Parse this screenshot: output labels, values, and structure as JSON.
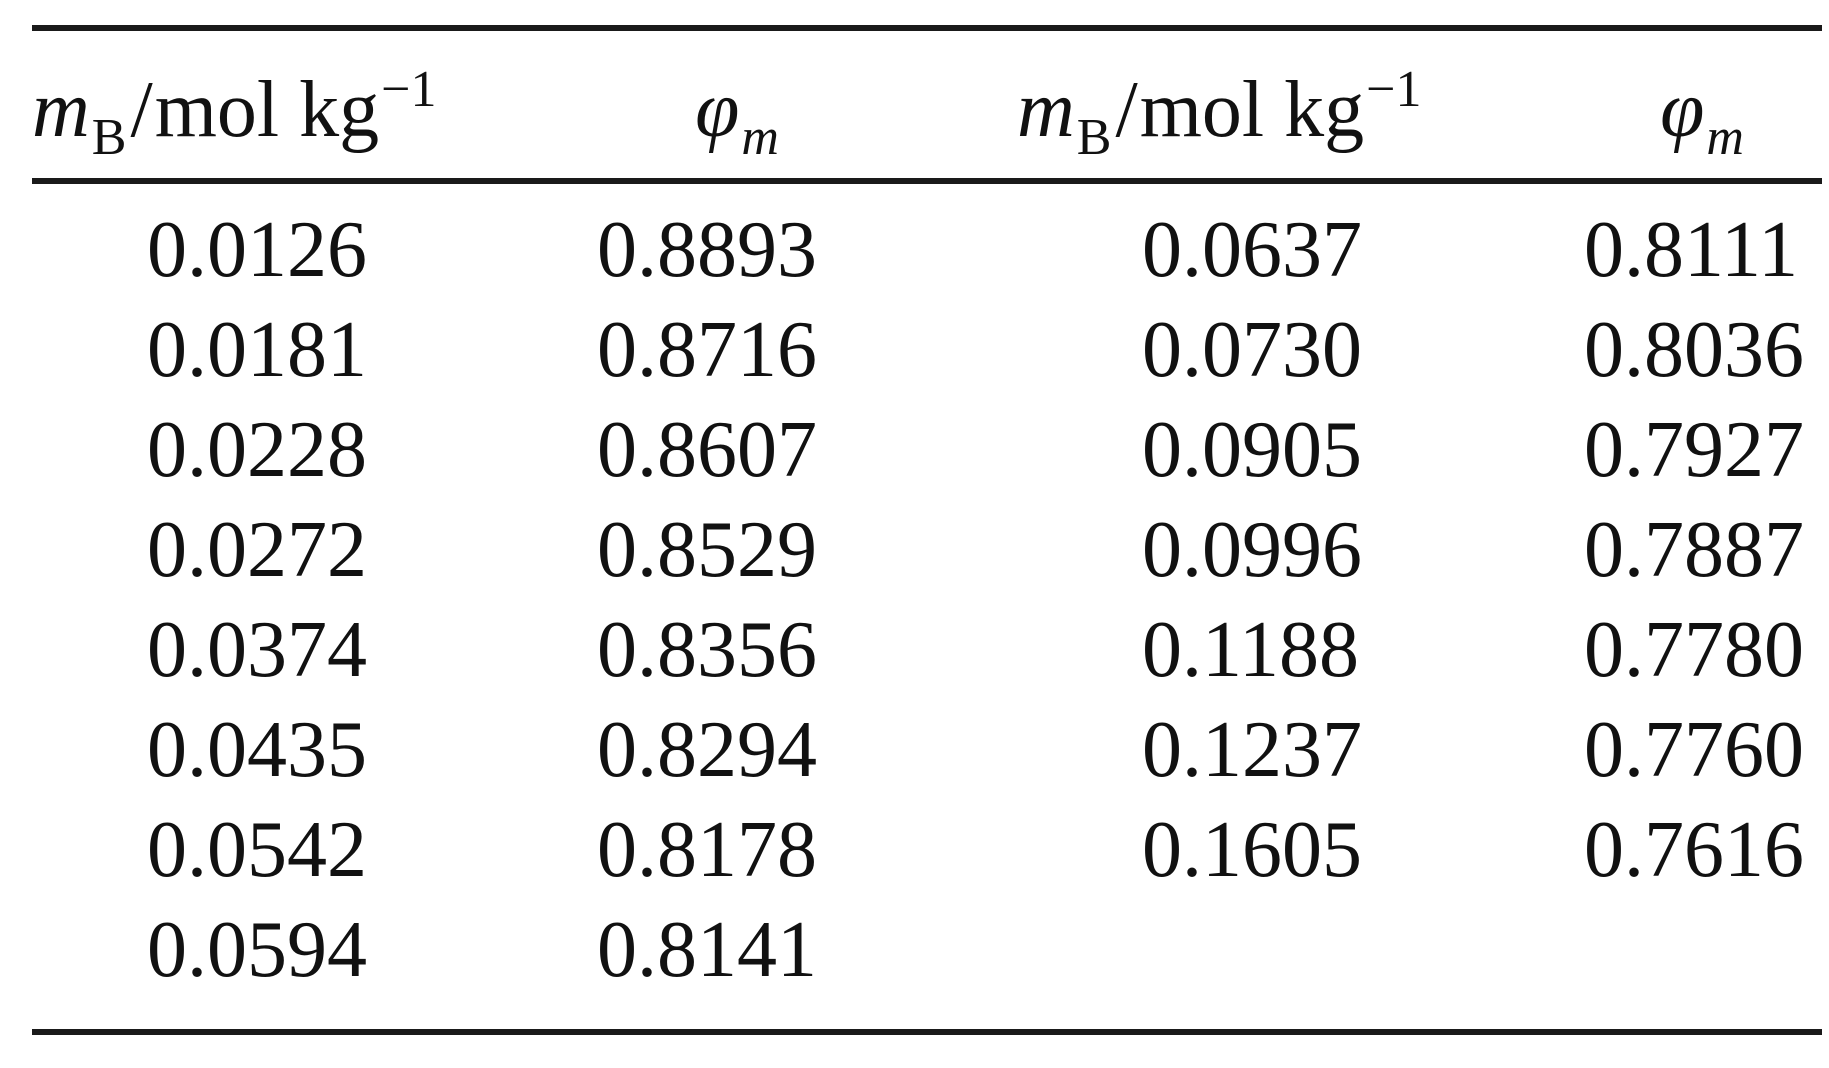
{
  "header": {
    "col1": {
      "symbol": "m",
      "subscript": "B",
      "unit": "mol kg",
      "exponent": "−1"
    },
    "col2": {
      "symbol": "φ",
      "subscript": "m"
    },
    "col3": {
      "symbol": "m",
      "subscript": "B",
      "unit": "mol kg",
      "exponent": "−1"
    },
    "col4": {
      "symbol": "φ",
      "subscript": "m"
    }
  },
  "rows": [
    {
      "m1": "0.0126",
      "phi1": "0.8893",
      "m2": "0.0637",
      "phi2": "0.8111"
    },
    {
      "m1": "0.0181",
      "phi1": "0.8716",
      "m2": "0.0730",
      "phi2": "0.8036"
    },
    {
      "m1": "0.0228",
      "phi1": "0.8607",
      "m2": "0.0905",
      "phi2": "0.7927"
    },
    {
      "m1": "0.0272",
      "phi1": "0.8529",
      "m2": "0.0996",
      "phi2": "0.7887"
    },
    {
      "m1": "0.0374",
      "phi1": "0.8356",
      "m2": "0.1188",
      "phi2": "0.7780"
    },
    {
      "m1": "0.0435",
      "phi1": "0.8294",
      "m2": "0.1237",
      "phi2": "0.7760"
    },
    {
      "m1": "0.0542",
      "phi1": "0.8178",
      "m2": "0.1605",
      "phi2": "0.7616"
    },
    {
      "m1": "0.0594",
      "phi1": "0.8141",
      "m2": "",
      "phi2": ""
    }
  ]
}
